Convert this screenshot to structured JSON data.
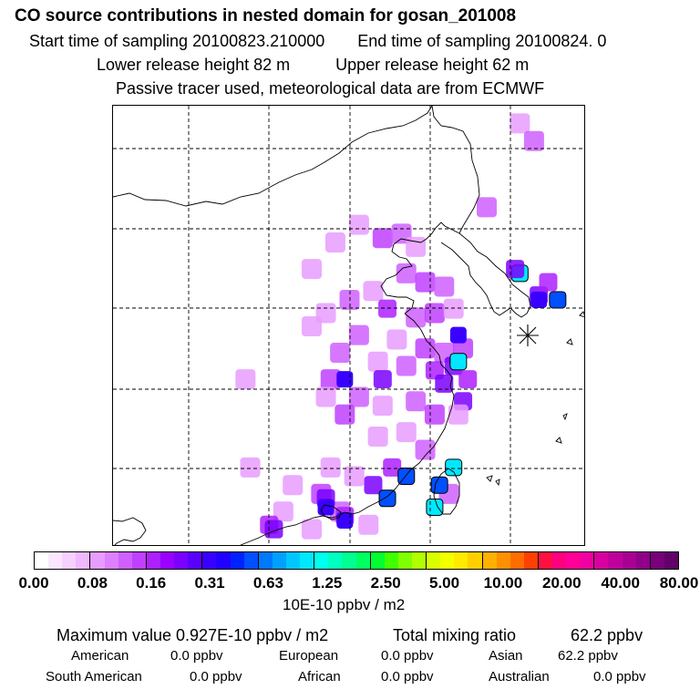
{
  "header": {
    "title": "CO  source contributions in nested domain for gosan_201008",
    "start_label": "Start time of sampling 20100823.210000",
    "end_label": "End time of sampling 20100824.     0",
    "lower_label": "Lower release height   82 m",
    "upper_label": "Upper release height   62 m",
    "tracer_note": "Passive tracer used, meteorological data are from ECMWF"
  },
  "map": {
    "receptor_marker": "asterisk-icon",
    "grid": "dashed",
    "concentration_cells": [
      {
        "lon_frac": 0.86,
        "lat_frac": 0.04,
        "level": 2
      },
      {
        "lon_frac": 0.89,
        "lat_frac": 0.08,
        "level": 3
      },
      {
        "lon_frac": 0.79,
        "lat_frac": 0.23,
        "level": 3
      },
      {
        "lon_frac": 0.57,
        "lat_frac": 0.3,
        "level": 4
      },
      {
        "lon_frac": 0.61,
        "lat_frac": 0.29,
        "level": 3
      },
      {
        "lon_frac": 0.64,
        "lat_frac": 0.32,
        "level": 2
      },
      {
        "lon_frac": 0.86,
        "lat_frac": 0.38,
        "level": 9
      },
      {
        "lon_frac": 0.9,
        "lat_frac": 0.43,
        "level": 6
      },
      {
        "lon_frac": 0.94,
        "lat_frac": 0.44,
        "level": 8
      },
      {
        "lon_frac": 0.92,
        "lat_frac": 0.4,
        "level": 5
      },
      {
        "lon_frac": 0.62,
        "lat_frac": 0.38,
        "level": 3
      },
      {
        "lon_frac": 0.66,
        "lat_frac": 0.4,
        "level": 4
      },
      {
        "lon_frac": 0.7,
        "lat_frac": 0.41,
        "level": 3
      },
      {
        "lon_frac": 0.55,
        "lat_frac": 0.42,
        "level": 2
      },
      {
        "lon_frac": 0.5,
        "lat_frac": 0.44,
        "level": 3
      },
      {
        "lon_frac": 0.58,
        "lat_frac": 0.46,
        "level": 5
      },
      {
        "lon_frac": 0.45,
        "lat_frac": 0.47,
        "level": 2
      },
      {
        "lon_frac": 0.64,
        "lat_frac": 0.48,
        "level": 3
      },
      {
        "lon_frac": 0.68,
        "lat_frac": 0.47,
        "level": 4
      },
      {
        "lon_frac": 0.72,
        "lat_frac": 0.46,
        "level": 2
      },
      {
        "lon_frac": 0.42,
        "lat_frac": 0.5,
        "level": 2
      },
      {
        "lon_frac": 0.52,
        "lat_frac": 0.52,
        "level": 3
      },
      {
        "lon_frac": 0.6,
        "lat_frac": 0.53,
        "level": 2
      },
      {
        "lon_frac": 0.66,
        "lat_frac": 0.55,
        "level": 4
      },
      {
        "lon_frac": 0.7,
        "lat_frac": 0.56,
        "level": 3
      },
      {
        "lon_frac": 0.74,
        "lat_frac": 0.55,
        "level": 4
      },
      {
        "lon_frac": 0.48,
        "lat_frac": 0.56,
        "level": 3
      },
      {
        "lon_frac": 0.56,
        "lat_frac": 0.58,
        "level": 2
      },
      {
        "lon_frac": 0.62,
        "lat_frac": 0.59,
        "level": 3
      },
      {
        "lon_frac": 0.68,
        "lat_frac": 0.6,
        "level": 5
      },
      {
        "lon_frac": 0.72,
        "lat_frac": 0.59,
        "level": 6
      },
      {
        "lon_frac": 0.46,
        "lat_frac": 0.62,
        "level": 4
      },
      {
        "lon_frac": 0.7,
        "lat_frac": 0.63,
        "level": 6
      },
      {
        "lon_frac": 0.73,
        "lat_frac": 0.58,
        "level": 9
      },
      {
        "lon_frac": 0.75,
        "lat_frac": 0.62,
        "level": 5
      },
      {
        "lon_frac": 0.74,
        "lat_frac": 0.67,
        "level": 6
      },
      {
        "lon_frac": 0.45,
        "lat_frac": 0.66,
        "level": 2
      },
      {
        "lon_frac": 0.52,
        "lat_frac": 0.66,
        "level": 3
      },
      {
        "lon_frac": 0.57,
        "lat_frac": 0.68,
        "level": 2
      },
      {
        "lon_frac": 0.64,
        "lat_frac": 0.67,
        "level": 3
      },
      {
        "lon_frac": 0.68,
        "lat_frac": 0.7,
        "level": 4
      },
      {
        "lon_frac": 0.49,
        "lat_frac": 0.7,
        "level": 4
      },
      {
        "lon_frac": 0.56,
        "lat_frac": 0.75,
        "level": 2
      },
      {
        "lon_frac": 0.62,
        "lat_frac": 0.74,
        "level": 2
      },
      {
        "lon_frac": 0.66,
        "lat_frac": 0.78,
        "level": 3
      },
      {
        "lon_frac": 0.59,
        "lat_frac": 0.82,
        "level": 5
      },
      {
        "lon_frac": 0.55,
        "lat_frac": 0.86,
        "level": 6
      },
      {
        "lon_frac": 0.51,
        "lat_frac": 0.84,
        "level": 2
      },
      {
        "lon_frac": 0.46,
        "lat_frac": 0.82,
        "level": 2
      },
      {
        "lon_frac": 0.38,
        "lat_frac": 0.86,
        "level": 2
      },
      {
        "lon_frac": 0.44,
        "lat_frac": 0.88,
        "level": 4
      },
      {
        "lon_frac": 0.48,
        "lat_frac": 0.92,
        "level": 3
      },
      {
        "lon_frac": 0.36,
        "lat_frac": 0.92,
        "level": 2
      },
      {
        "lon_frac": 0.33,
        "lat_frac": 0.95,
        "level": 5
      },
      {
        "lon_frac": 0.42,
        "lat_frac": 0.96,
        "level": 2
      },
      {
        "lon_frac": 0.45,
        "lat_frac": 0.89,
        "level": 6
      },
      {
        "lon_frac": 0.49,
        "lat_frac": 0.93,
        "level": 5
      },
      {
        "lon_frac": 0.54,
        "lat_frac": 0.95,
        "level": 2
      },
      {
        "lon_frac": 0.29,
        "lat_frac": 0.82,
        "level": 2
      },
      {
        "lon_frac": 0.28,
        "lat_frac": 0.62,
        "level": 2
      },
      {
        "lon_frac": 0.42,
        "lat_frac": 0.37,
        "level": 2
      },
      {
        "lon_frac": 0.47,
        "lat_frac": 0.31,
        "level": 2
      },
      {
        "lon_frac": 0.52,
        "lat_frac": 0.27,
        "level": 2
      },
      {
        "lon_frac": 0.73,
        "lat_frac": 0.7,
        "level": 2
      },
      {
        "lon_frac": 0.71,
        "lat_frac": 0.88,
        "level": 3
      },
      {
        "lon_frac": 0.69,
        "lat_frac": 0.86,
        "level": 8
      },
      {
        "lon_frac": 0.72,
        "lat_frac": 0.82,
        "level": 9
      },
      {
        "lon_frac": 0.68,
        "lat_frac": 0.91,
        "level": 9
      },
      {
        "lon_frac": 0.62,
        "lat_frac": 0.84,
        "level": 8
      },
      {
        "lon_frac": 0.58,
        "lat_frac": 0.89,
        "level": 8
      },
      {
        "lon_frac": 0.45,
        "lat_frac": 0.91,
        "level": 7
      },
      {
        "lon_frac": 0.49,
        "lat_frac": 0.94,
        "level": 7
      },
      {
        "lon_frac": 0.34,
        "lat_frac": 0.96,
        "level": 6
      },
      {
        "lon_frac": 0.49,
        "lat_frac": 0.62,
        "level": 7
      },
      {
        "lon_frac": 0.57,
        "lat_frac": 0.62,
        "level": 6
      },
      {
        "lon_frac": 0.73,
        "lat_frac": 0.52,
        "level": 7
      },
      {
        "lon_frac": 0.9,
        "lat_frac": 0.44,
        "level": 7
      },
      {
        "lon_frac": 0.85,
        "lat_frac": 0.37,
        "level": 6
      }
    ]
  },
  "colorbar": {
    "colors": [
      "#ffffff",
      "#fbe6ff",
      "#f6d0ff",
      "#f0b8ff",
      "#e79cff",
      "#dd80ff",
      "#cf60ff",
      "#bf40ff",
      "#ad20ff",
      "#9a00ff",
      "#7a00ff",
      "#5a00ff",
      "#3a00ff",
      "#2000ff",
      "#0022ff",
      "#0050ff",
      "#0078ff",
      "#00a0ff",
      "#00c8ff",
      "#00e8ff",
      "#00ffee",
      "#00ffc0",
      "#00ff90",
      "#00ff60",
      "#00ff30",
      "#40ff00",
      "#80ff00",
      "#b0ff00",
      "#d8ff00",
      "#f4ff00",
      "#ffea00",
      "#ffd000",
      "#ffb000",
      "#ff9000",
      "#ff6c00",
      "#ff4000",
      "#ff1040",
      "#ff0080",
      "#ff0098",
      "#f000a0",
      "#d800a0",
      "#c0009c",
      "#a80094",
      "#900088",
      "#78007a",
      "#600068"
    ],
    "tick_labels": [
      "0.00",
      "0.08",
      "0.16",
      "0.31",
      "0.63",
      "1.25",
      "2.50",
      "5.00",
      "10.00",
      "20.00",
      "40.00",
      "80.00"
    ],
    "unit": "10E-10 ppbv / m2"
  },
  "summary": {
    "max_label": "Maximum value  0.927E-10 ppbv / m2",
    "total_label": "Total mixing ratio",
    "total_value": "62.2 ppbv",
    "regions": [
      {
        "name": "American",
        "value": "0.0 ppbv"
      },
      {
        "name": "European",
        "value": "0.0 ppbv"
      },
      {
        "name": "Asian",
        "value": "62.2 ppbv"
      },
      {
        "name": "South American",
        "value": "0.0 ppbv"
      },
      {
        "name": "African",
        "value": "0.0 ppbv"
      },
      {
        "name": "Australian",
        "value": "0.0 ppbv"
      }
    ]
  }
}
